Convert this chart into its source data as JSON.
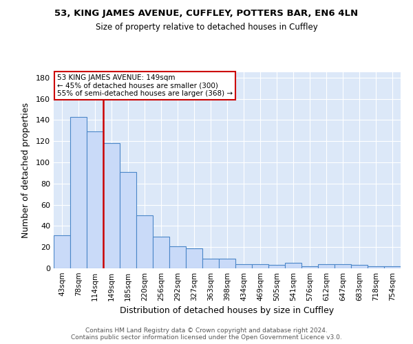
{
  "title1": "53, KING JAMES AVENUE, CUFFLEY, POTTERS BAR, EN6 4LN",
  "title2": "Size of property relative to detached houses in Cuffley",
  "xlabel": "Distribution of detached houses by size in Cuffley",
  "ylabel": "Number of detached properties",
  "categories": [
    "43sqm",
    "78sqm",
    "114sqm",
    "149sqm",
    "185sqm",
    "220sqm",
    "256sqm",
    "292sqm",
    "327sqm",
    "363sqm",
    "398sqm",
    "434sqm",
    "469sqm",
    "505sqm",
    "541sqm",
    "576sqm",
    "612sqm",
    "647sqm",
    "683sqm",
    "718sqm",
    "754sqm"
  ],
  "values": [
    31,
    143,
    129,
    118,
    91,
    50,
    30,
    21,
    19,
    9,
    9,
    4,
    4,
    3,
    5,
    2,
    4,
    4,
    3,
    2,
    2
  ],
  "bar_color": "#c9daf8",
  "bar_edge_color": "#4a86c8",
  "vline_color": "#cc0000",
  "vline_pos": 2.5,
  "annotation_text": "53 KING JAMES AVENUE: 149sqm\n← 45% of detached houses are smaller (300)\n55% of semi-detached houses are larger (368) →",
  "annotation_box_color": "white",
  "annotation_box_edge_color": "#cc0000",
  "ylim": [
    0,
    185
  ],
  "yticks": [
    0,
    20,
    40,
    60,
    80,
    100,
    120,
    140,
    160,
    180
  ],
  "footer": "Contains HM Land Registry data © Crown copyright and database right 2024.\nContains public sector information licensed under the Open Government Licence v3.0.",
  "plot_background": "#dce8f8"
}
